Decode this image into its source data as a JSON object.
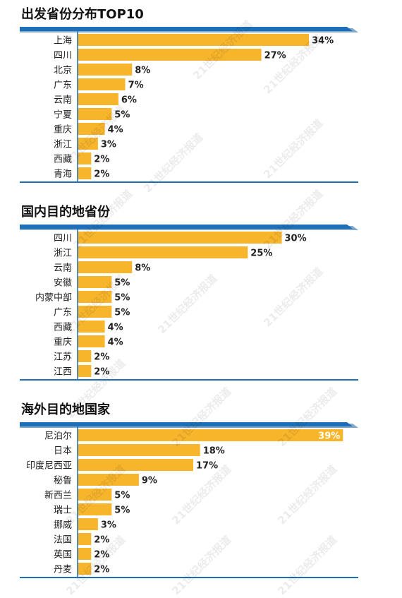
{
  "colors": {
    "bar": "#F7B52C",
    "header_band": "#1E6FB5",
    "header_shadow": "#7FA8C9",
    "axis": "#1E6FB5",
    "watermark": "#cccccc"
  },
  "watermark_text": "21世纪经济报道",
  "chart_data": [
    {
      "type": "bar",
      "orientation": "horizontal",
      "title": "出发省份分布TOP10",
      "categories": [
        "上海",
        "四川",
        "北京",
        "广东",
        "云南",
        "宁夏",
        "重庆",
        "浙江",
        "西藏",
        "青海"
      ],
      "values": [
        34,
        27,
        8,
        7,
        6,
        5,
        4,
        3,
        2,
        2
      ],
      "labels": [
        "34%",
        "27%",
        "8%",
        "7%",
        "6%",
        "5%",
        "4%",
        "3%",
        "2%",
        "2%"
      ],
      "xlim": [
        0,
        40
      ]
    },
    {
      "type": "bar",
      "orientation": "horizontal",
      "title": "国内目的地省份",
      "categories": [
        "四川",
        "浙江",
        "云南",
        "安徽",
        "内蒙中部",
        "广东",
        "西藏",
        "重庆",
        "江苏",
        "江西"
      ],
      "values": [
        30,
        25,
        8,
        5,
        5,
        5,
        4,
        4,
        2,
        2
      ],
      "labels": [
        "30%",
        "25%",
        "8%",
        "5%",
        "5%",
        "5%",
        "4%",
        "4%",
        "2%",
        "2%"
      ],
      "xlim": [
        0,
        40
      ]
    },
    {
      "type": "bar",
      "orientation": "horizontal",
      "title": "海外目的地国家",
      "categories": [
        "尼泊尔",
        "日本",
        "印度尼西亚",
        "秘鲁",
        "新西兰",
        "瑞士",
        "挪威",
        "法国",
        "英国",
        "丹麦"
      ],
      "values": [
        39,
        18,
        17,
        9,
        5,
        5,
        3,
        2,
        2,
        2
      ],
      "labels": [
        "39%",
        "18%",
        "17%",
        "9%",
        "5%",
        "5%",
        "3%",
        "2%",
        "2%",
        "2%"
      ],
      "xlim": [
        0,
        40
      ]
    }
  ]
}
